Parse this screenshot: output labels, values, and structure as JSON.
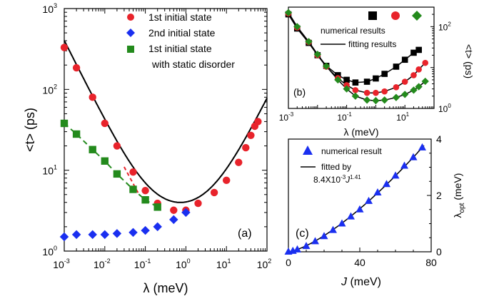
{
  "colors": {
    "red": "#e8232b",
    "blue": "#1a2ff0",
    "green": "#238a1c",
    "black": "#000000"
  },
  "chart_data": [
    {
      "panel": "(a)",
      "type": "scatter",
      "xscale": "log",
      "yscale": "log",
      "xlim": [
        0.001,
        100
      ],
      "ylim": [
        1,
        1000
      ],
      "xlabel": "λ (meV)",
      "ylabel": "<t> (ps)",
      "xticks": [
        "10^-3",
        "10^-2",
        "10^-1",
        "10^0",
        "10^1",
        "10^2"
      ],
      "yticks": [
        "10^0",
        "10^1",
        "10^2",
        "10^3"
      ],
      "legend_position": "top-right",
      "series": [
        {
          "name": "1st initial state",
          "marker": "circle",
          "color": "red",
          "x": [
            0.001,
            0.002,
            0.005,
            0.01,
            0.02,
            0.05,
            0.1,
            0.2,
            0.5,
            1,
            2,
            5,
            10,
            20,
            30,
            40,
            50,
            60
          ],
          "y": [
            330,
            185,
            80,
            38,
            20,
            9.5,
            5.6,
            3.9,
            3.2,
            3.2,
            3.9,
            5.3,
            7.5,
            12.5,
            19,
            27,
            35,
            40
          ]
        },
        {
          "name": "2nd initial state",
          "marker": "diamond",
          "color": "blue",
          "x": [
            0.001,
            0.002,
            0.005,
            0.01,
            0.02,
            0.05,
            0.1,
            0.2,
            0.5,
            1
          ],
          "y": [
            1.5,
            1.6,
            1.6,
            1.6,
            1.65,
            1.7,
            1.8,
            2.0,
            2.45,
            3.0
          ]
        },
        {
          "name": "1st initial state",
          "name_line2": "with static disorder",
          "marker": "square",
          "color": "green",
          "x": [
            0.001,
            0.002,
            0.005,
            0.01,
            0.02,
            0.05,
            0.1,
            0.2
          ],
          "y": [
            38,
            28,
            18,
            13,
            9.0,
            5.8,
            4.3,
            3.5
          ]
        }
      ],
      "fit_black": {
        "color": "black",
        "formula_note": "",
        "lambda_min": 0.001,
        "lambda_max": 100
      },
      "fit_red_dashed": {
        "color": "red",
        "x": [
          0.03,
          0.07
        ]
      },
      "fit_green_dashed": {
        "color": "green",
        "x": [
          0.001,
          0.2
        ]
      },
      "annotation": "(a)"
    },
    {
      "panel": "(b)",
      "type": "scatter",
      "xscale": "log",
      "yscale": "log",
      "xlim": [
        0.001,
        100
      ],
      "ylim": [
        1,
        300
      ],
      "xlabel": "λ (meV)",
      "ylabel": "<t> (ps)",
      "xticks": [
        "10^-3",
        "10^-1",
        "10^1"
      ],
      "yticks": [
        "10^0",
        "10^2"
      ],
      "legend": [
        "numerical results",
        "fitting results"
      ],
      "series": [
        {
          "marker": "square",
          "color": "black",
          "x": [
            0.001,
            0.002,
            0.005,
            0.01,
            0.02,
            0.05,
            0.1,
            0.2,
            0.5,
            1,
            2,
            5,
            10,
            20,
            30
          ],
          "y": [
            200,
            90,
            40,
            20,
            11,
            6.5,
            5.0,
            4.3,
            4.5,
            5.4,
            7.0,
            10.5,
            15.5,
            23,
            27
          ]
        },
        {
          "marker": "circle",
          "color": "red",
          "x": [
            0.001,
            0.002,
            0.005,
            0.01,
            0.02,
            0.05,
            0.1,
            0.2,
            0.5,
            1,
            2,
            5,
            10,
            20,
            30,
            50
          ],
          "y": [
            210,
            95,
            42,
            20,
            10.5,
            5.5,
            3.7,
            2.8,
            2.4,
            2.4,
            2.6,
            3.3,
            4.5,
            6.5,
            9,
            13
          ]
        },
        {
          "marker": "diamond",
          "color": "green",
          "x": [
            0.001,
            0.002,
            0.005,
            0.01,
            0.02,
            0.05,
            0.1,
            0.2,
            0.5,
            1,
            2,
            5,
            10,
            20,
            30,
            50
          ],
          "y": [
            220,
            100,
            43,
            21,
            10.8,
            5.0,
            3.0,
            2.0,
            1.6,
            1.55,
            1.6,
            1.85,
            2.2,
            2.8,
            3.4,
            4.6
          ]
        }
      ],
      "annotation": "(b)"
    },
    {
      "panel": "(c)",
      "type": "scatter",
      "xlim": [
        0,
        80
      ],
      "ylim": [
        0,
        4
      ],
      "xlabel": "J (meV)",
      "ylabel": "λopt (meV)",
      "xticks": [
        "0",
        "40",
        "80"
      ],
      "yticks": [
        "0",
        "2",
        "4"
      ],
      "legend": [
        "numerical result",
        "fitted by",
        "8.4X10^-3 J^1.41"
      ],
      "series": [
        {
          "name": "numerical result",
          "marker": "triangle",
          "color": "blue",
          "x": [
            0,
            2.5,
            5,
            10,
            15,
            20,
            25,
            30,
            35,
            40,
            45,
            50,
            55,
            60,
            65,
            70,
            75
          ],
          "y": [
            0.0,
            0.03,
            0.08,
            0.2,
            0.37,
            0.55,
            0.77,
            1.0,
            1.25,
            1.5,
            1.8,
            2.1,
            2.4,
            2.7,
            3.05,
            3.35,
            3.7
          ]
        }
      ],
      "fit": {
        "coef": 0.0084,
        "exponent": 1.41
      },
      "annotation": "(c)"
    }
  ],
  "text": {
    "a": {
      "ylabel": "<t> (ps)",
      "xlabel": "λ (meV)",
      "legend1": "1st initial state",
      "legend2": "2nd initial state",
      "legend3a": "1st initial state",
      "legend3b": "with static disorder",
      "label": "(a)",
      "xtick_base": "10",
      "xtick_exp": [
        "-3",
        "-2",
        "-1",
        "0",
        "1",
        "2"
      ],
      "ytick_exp": [
        "0",
        "1",
        "2",
        "3"
      ]
    },
    "b": {
      "legend1": "numerical results",
      "legend2": "fitting results",
      "label": "(b)",
      "xlabel": "λ (meV)",
      "ylabel": "<t> (ps)",
      "xtick_exp": [
        "-3",
        "-1",
        "1"
      ],
      "ytick_exp": [
        "0",
        "2"
      ]
    },
    "c": {
      "legend1": "numerical result",
      "legend2": "fitted by",
      "legend3_base": "8.4X10",
      "legend3_exp": "-3",
      "legend3_J": "J",
      "legend3_pow": "1.41",
      "label": "(c)",
      "xlabel_J": "J",
      "xlabel_rest": " (meV)",
      "ylabel_main": "λ",
      "ylabel_sub": "opt",
      "ylabel_rest": " (meV)",
      "xticks": [
        "0",
        "40",
        "80"
      ],
      "yticks": [
        "0",
        "2",
        "4"
      ]
    }
  }
}
